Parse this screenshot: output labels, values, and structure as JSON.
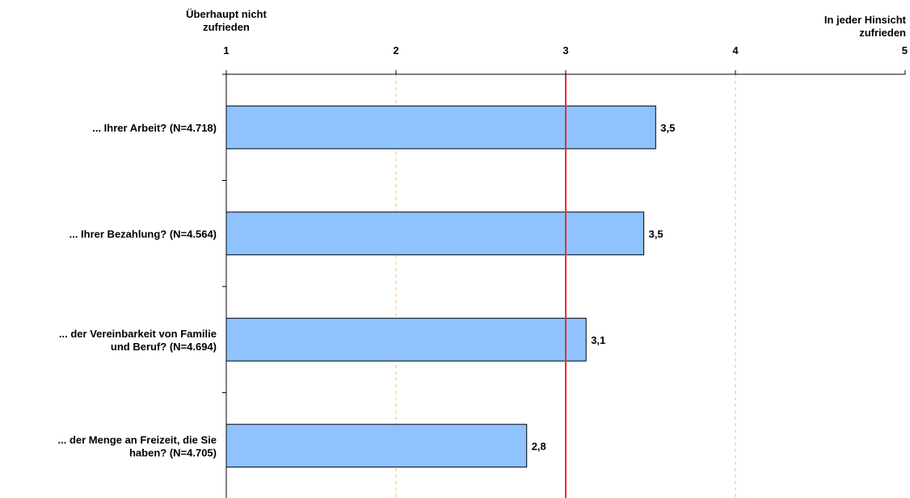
{
  "chart_data": {
    "type": "bar",
    "orientation": "horizontal",
    "categories": [
      [
        "... Ihrer Arbeit? (N=4.718)"
      ],
      [
        "... Ihrer Bezahlung? (N=4.564)"
      ],
      [
        "... der Vereinbarkeit von Familie",
        "und Beruf? (N=4.694)"
      ],
      [
        "... der Menge an Freizeit, die Sie",
        "haben? (N=4.705)"
      ]
    ],
    "values": [
      3.53,
      3.46,
      3.12,
      2.77
    ],
    "value_labels": [
      "3,5",
      "3,5",
      "3,1",
      "2,8"
    ],
    "xlim": [
      1,
      5
    ],
    "xticks": [
      1,
      2,
      3,
      4,
      5
    ],
    "xtick_labels": [
      "1",
      "2",
      "3",
      "4",
      "5"
    ],
    "scale_left_label": [
      "Überhaupt nicht",
      "zufrieden"
    ],
    "scale_right_label": [
      "In jeder Hinsicht",
      "zufrieden"
    ],
    "reference_line": 3,
    "axis_position": "top",
    "grid": "dashed vertical at 2 and 4",
    "colors": {
      "bar_fill": "#8EC3FF",
      "bar_stroke": "#000000",
      "reference_line": "#E8312B",
      "grid": "#F0C27A"
    }
  }
}
